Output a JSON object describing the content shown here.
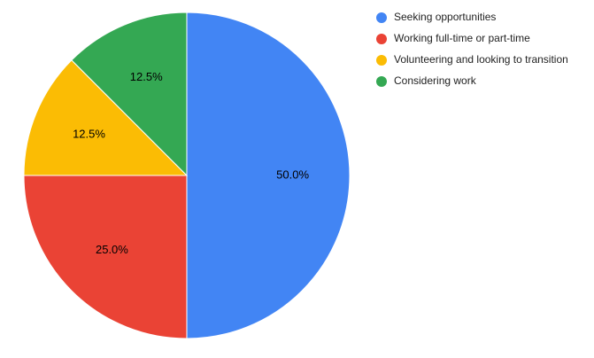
{
  "chart_data": {
    "type": "pie",
    "title": "",
    "legend_position": "right",
    "slices": [
      {
        "label": "Seeking opportunities",
        "value": 50.0,
        "display": "50.0%",
        "color": "#4285f4"
      },
      {
        "label": "Working full-time or part-time",
        "value": 25.0,
        "display": "25.0%",
        "color": "#ea4335"
      },
      {
        "label": "Volunteering and looking to transition",
        "value": 12.5,
        "display": "12.5%",
        "color": "#fbbc04"
      },
      {
        "label": "Considering work",
        "value": 12.5,
        "display": "12.5%",
        "color": "#34a853"
      }
    ]
  }
}
